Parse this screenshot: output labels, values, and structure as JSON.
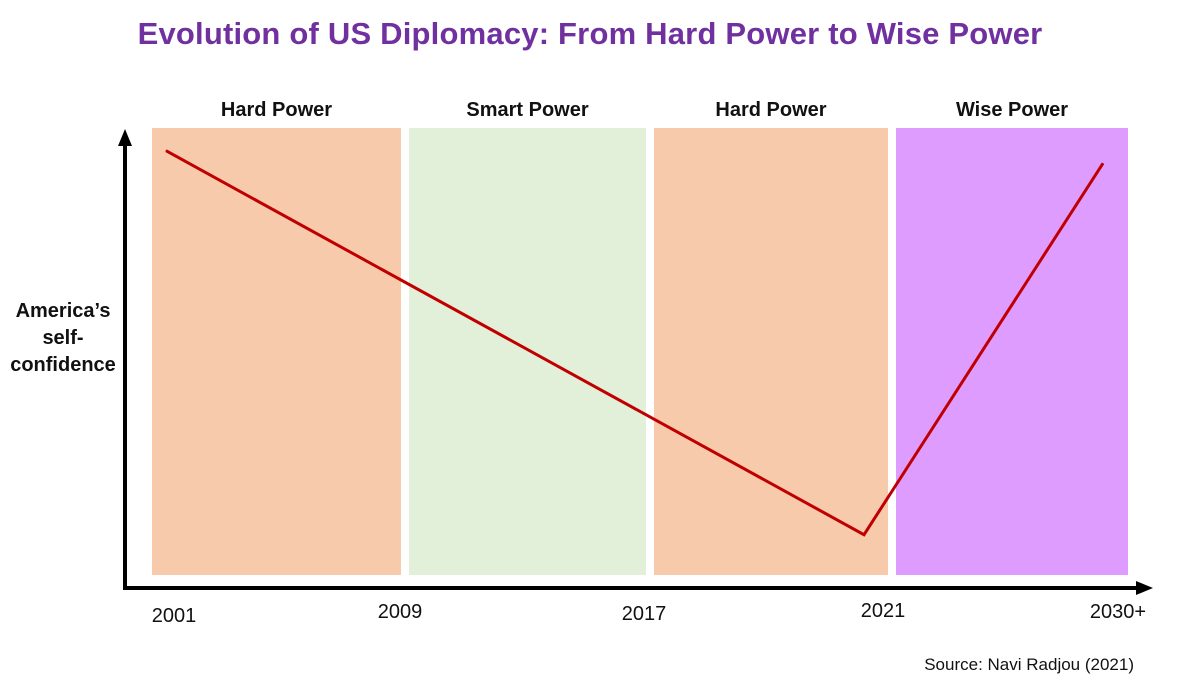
{
  "chart_data": {
    "type": "line",
    "title": "Evolution of US Diplomacy: From Hard Power to Wise Power",
    "ylabel": [
      "America’s",
      "self-",
      "confidence"
    ],
    "xlabel": "",
    "x_ticks": [
      "2001",
      "2009",
      "2017",
      "2021",
      "2030+"
    ],
    "eras": [
      {
        "label": "Hard Power",
        "from": "2001",
        "to": "2009",
        "color": "#f7caac"
      },
      {
        "label": "Smart Power",
        "from": "2009",
        "to": "2017",
        "color": "#e2efd9"
      },
      {
        "label": "Hard Power",
        "from": "2017",
        "to": "2021",
        "color": "#f7caac"
      },
      {
        "label": "Wise Power",
        "from": "2021",
        "to": "2030+",
        "color": "#df9cff"
      }
    ],
    "series": [
      {
        "x": [
          "2001",
          "2021",
          "2030+"
        ],
        "values": [
          0.97,
          0.06,
          0.94
        ],
        "color": "#c00000"
      }
    ],
    "ylim": [
      0,
      1
    ],
    "y_ticks_shown": false,
    "grid": false,
    "legend": "none",
    "source": "Source: Navi Radjou (2021)"
  },
  "colors": {
    "title": "#7030a0",
    "axis": "#000000",
    "line": "#c00000"
  }
}
